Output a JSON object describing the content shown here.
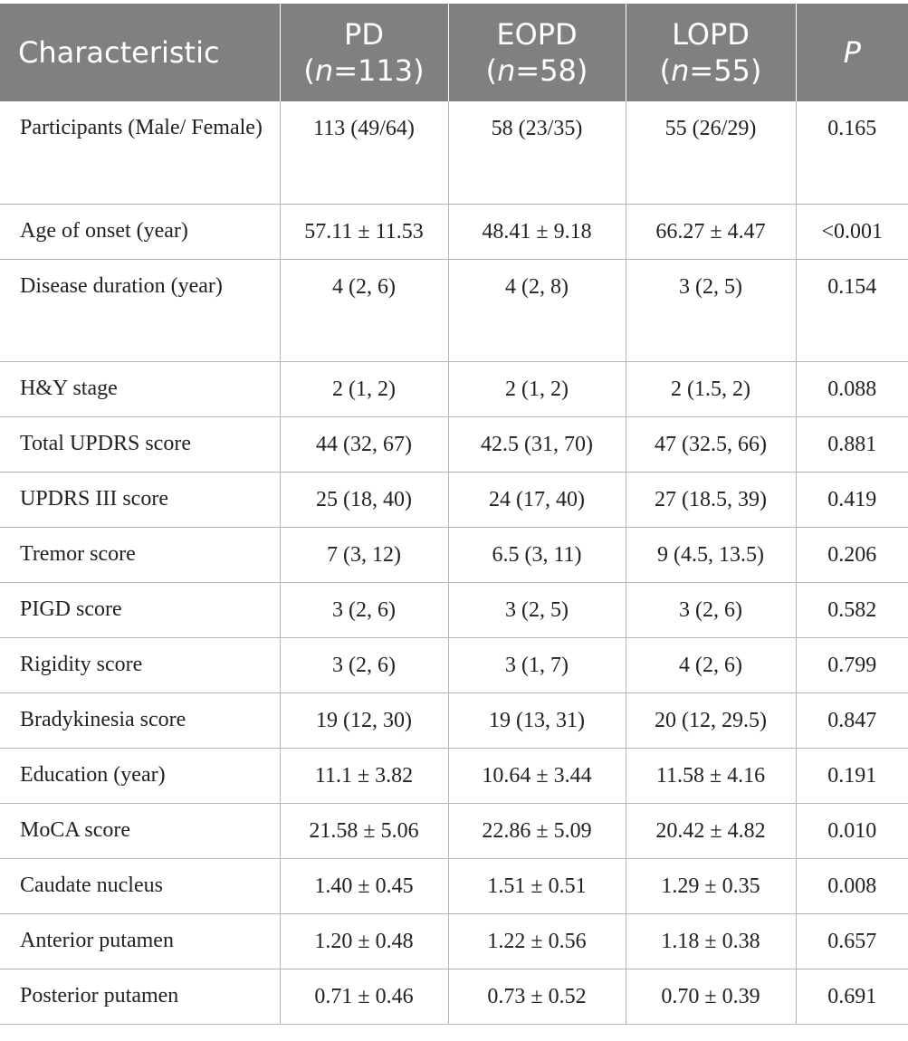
{
  "header": {
    "characteristic": "Characteristic",
    "pd_name": "PD",
    "pd_n": "113",
    "eopd_name": "EOPD",
    "eopd_n": "58",
    "lopd_name": "LOPD",
    "lopd_n": "55",
    "p_label": "P",
    "n_label": "n",
    "eq": "="
  },
  "rows": [
    {
      "label": "Participants (Male/ Female)",
      "pd": "113 (49/64)",
      "eopd": "58 (23/35)",
      "lopd": "55 (26/29)",
      "p": "0.165"
    },
    {
      "label": "Age of onset (year)",
      "pd": "57.11 ± 11.53",
      "eopd": "48.41 ± 9.18",
      "lopd": "66.27 ± 4.47",
      "p": "<0.001"
    },
    {
      "label": "Disease duration (year)",
      "pd": "4 (2, 6)",
      "eopd": "4 (2, 8)",
      "lopd": "3 (2, 5)",
      "p": "0.154"
    },
    {
      "label": "H&Y stage",
      "pd": "2 (1, 2)",
      "eopd": "2 (1, 2)",
      "lopd": "2 (1.5, 2)",
      "p": "0.088"
    },
    {
      "label": "Total UPDRS score",
      "pd": "44 (32, 67)",
      "eopd": "42.5 (31, 70)",
      "lopd": "47 (32.5, 66)",
      "p": "0.881"
    },
    {
      "label": "UPDRS III score",
      "pd": "25 (18, 40)",
      "eopd": "24 (17, 40)",
      "lopd": "27 (18.5, 39)",
      "p": "0.419"
    },
    {
      "label": "Tremor score",
      "pd": "7 (3, 12)",
      "eopd": "6.5 (3, 11)",
      "lopd": "9 (4.5, 13.5)",
      "p": "0.206"
    },
    {
      "label": "PIGD score",
      "pd": "3 (2, 6)",
      "eopd": "3 (2, 5)",
      "lopd": "3 (2, 6)",
      "p": "0.582"
    },
    {
      "label": "Rigidity score",
      "pd": "3 (2, 6)",
      "eopd": "3 (1, 7)",
      "lopd": "4 (2, 6)",
      "p": "0.799"
    },
    {
      "label": "Bradykinesia score",
      "pd": "19 (12, 30)",
      "eopd": "19 (13, 31)",
      "lopd": "20 (12, 29.5)",
      "p": "0.847"
    },
    {
      "label": "Education (year)",
      "pd": "11.1 ± 3.82",
      "eopd": "10.64 ± 3.44",
      "lopd": "11.58 ± 4.16",
      "p": "0.191"
    },
    {
      "label": "MoCA score",
      "pd": "21.58 ± 5.06",
      "eopd": "22.86 ± 5.09",
      "lopd": "20.42 ± 4.82",
      "p": "0.010"
    },
    {
      "label": "Caudate nucleus",
      "pd": "1.40 ± 0.45",
      "eopd": "1.51 ± 0.51",
      "lopd": "1.29 ± 0.35",
      "p": "0.008"
    },
    {
      "label": "Anterior putamen",
      "pd": "1.20 ± 0.48",
      "eopd": "1.22 ± 0.56",
      "lopd": "1.18 ± 0.38",
      "p": "0.657"
    },
    {
      "label": "Posterior putamen",
      "pd": "0.71 ± 0.46",
      "eopd": "0.73 ± 0.52",
      "lopd": "0.70 ± 0.39",
      "p": "0.691"
    }
  ]
}
